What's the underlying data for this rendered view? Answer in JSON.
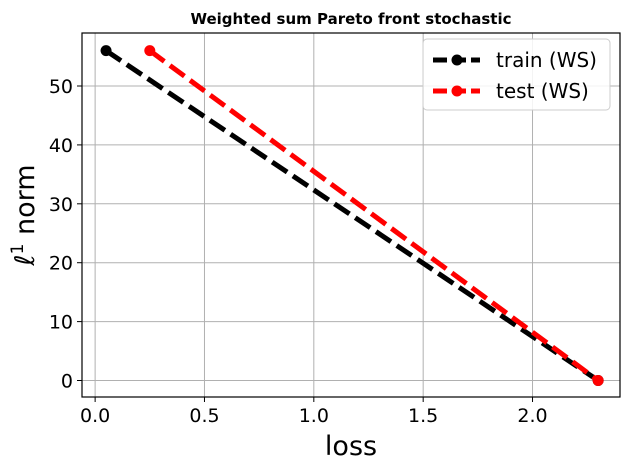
{
  "chart_data": {
    "type": "line",
    "title": "Weighted sum Pareto front stochastic",
    "xlabel": "loss",
    "ylabel_prefix": "ℓ",
    "ylabel_sup": "1",
    "ylabel_suffix": " norm",
    "xlim": [
      -0.06,
      2.4
    ],
    "ylim": [
      -2.8,
      59
    ],
    "xticks": [
      0.0,
      0.5,
      1.0,
      1.5,
      2.0
    ],
    "xtick_labels": [
      "0.0",
      "0.5",
      "1.0",
      "1.5",
      "2.0"
    ],
    "yticks": [
      0,
      10,
      20,
      30,
      40,
      50
    ],
    "ytick_labels": [
      "0",
      "10",
      "20",
      "30",
      "40",
      "50"
    ],
    "grid": true,
    "legend_position": "top-right",
    "series": [
      {
        "name": "train (WS)",
        "color": "#000000",
        "style": "dashed",
        "marker": "circle",
        "x": [
          0.05,
          2.3
        ],
        "y": [
          56,
          0
        ]
      },
      {
        "name": "test (WS)",
        "color": "#ff0000",
        "style": "dashed",
        "marker": "circle",
        "x": [
          0.25,
          2.3
        ],
        "y": [
          56,
          0
        ]
      }
    ]
  }
}
